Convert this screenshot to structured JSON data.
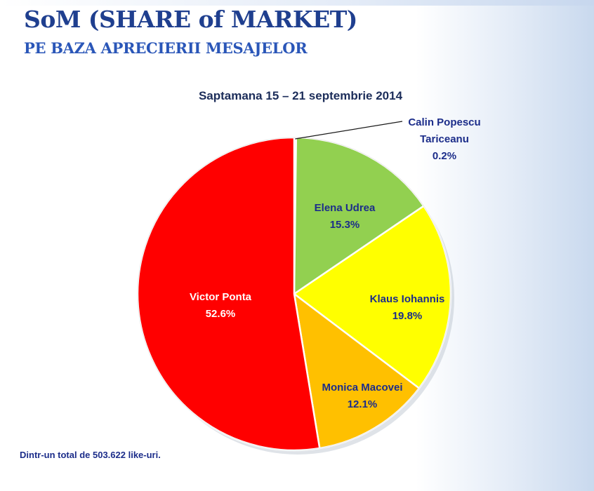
{
  "header": {
    "title": "SoM (SHARE of MARKET)",
    "subtitle": "PE BAZA APRECIERII MESAJELOR"
  },
  "footnote": "Dintr-un total de  503.622 like-uri.",
  "chart_data": {
    "type": "pie",
    "title": "Saptamana 15 – 21 septembrie 2014",
    "slices": [
      {
        "label": "Calin Popescu Tariceanu",
        "label_lines": [
          "Calin Popescu",
          "Tariceanu"
        ],
        "value": 0.2,
        "value_label": "0.2%",
        "color": "#c8d3e6"
      },
      {
        "label": "Elena Udrea",
        "label_lines": [
          "Elena Udrea"
        ],
        "value": 15.3,
        "value_label": "15.3%",
        "color": "#92d050"
      },
      {
        "label": "Klaus Iohannis",
        "label_lines": [
          "Klaus Iohannis"
        ],
        "value": 19.8,
        "value_label": "19.8%",
        "color": "#ffff00"
      },
      {
        "label": "Monica Macovei",
        "label_lines": [
          "Monica Macovei"
        ],
        "value": 12.1,
        "value_label": "12.1%",
        "color": "#ffc000"
      },
      {
        "label": "Victor Ponta",
        "label_lines": [
          "Victor Ponta"
        ],
        "value": 52.6,
        "value_label": "52.6%",
        "color": "#ff0000"
      }
    ],
    "label_colors": {
      "Calin Popescu Tariceanu": "#1c2d8a",
      "Elena Udrea": "#1c2d8a",
      "Klaus Iohannis": "#1c2d8a",
      "Monica Macovei": "#1c2d8a",
      "Victor Ponta": "#ffffff"
    },
    "start_angle_deg": 0,
    "direction": "clockwise",
    "legend": "none"
  }
}
